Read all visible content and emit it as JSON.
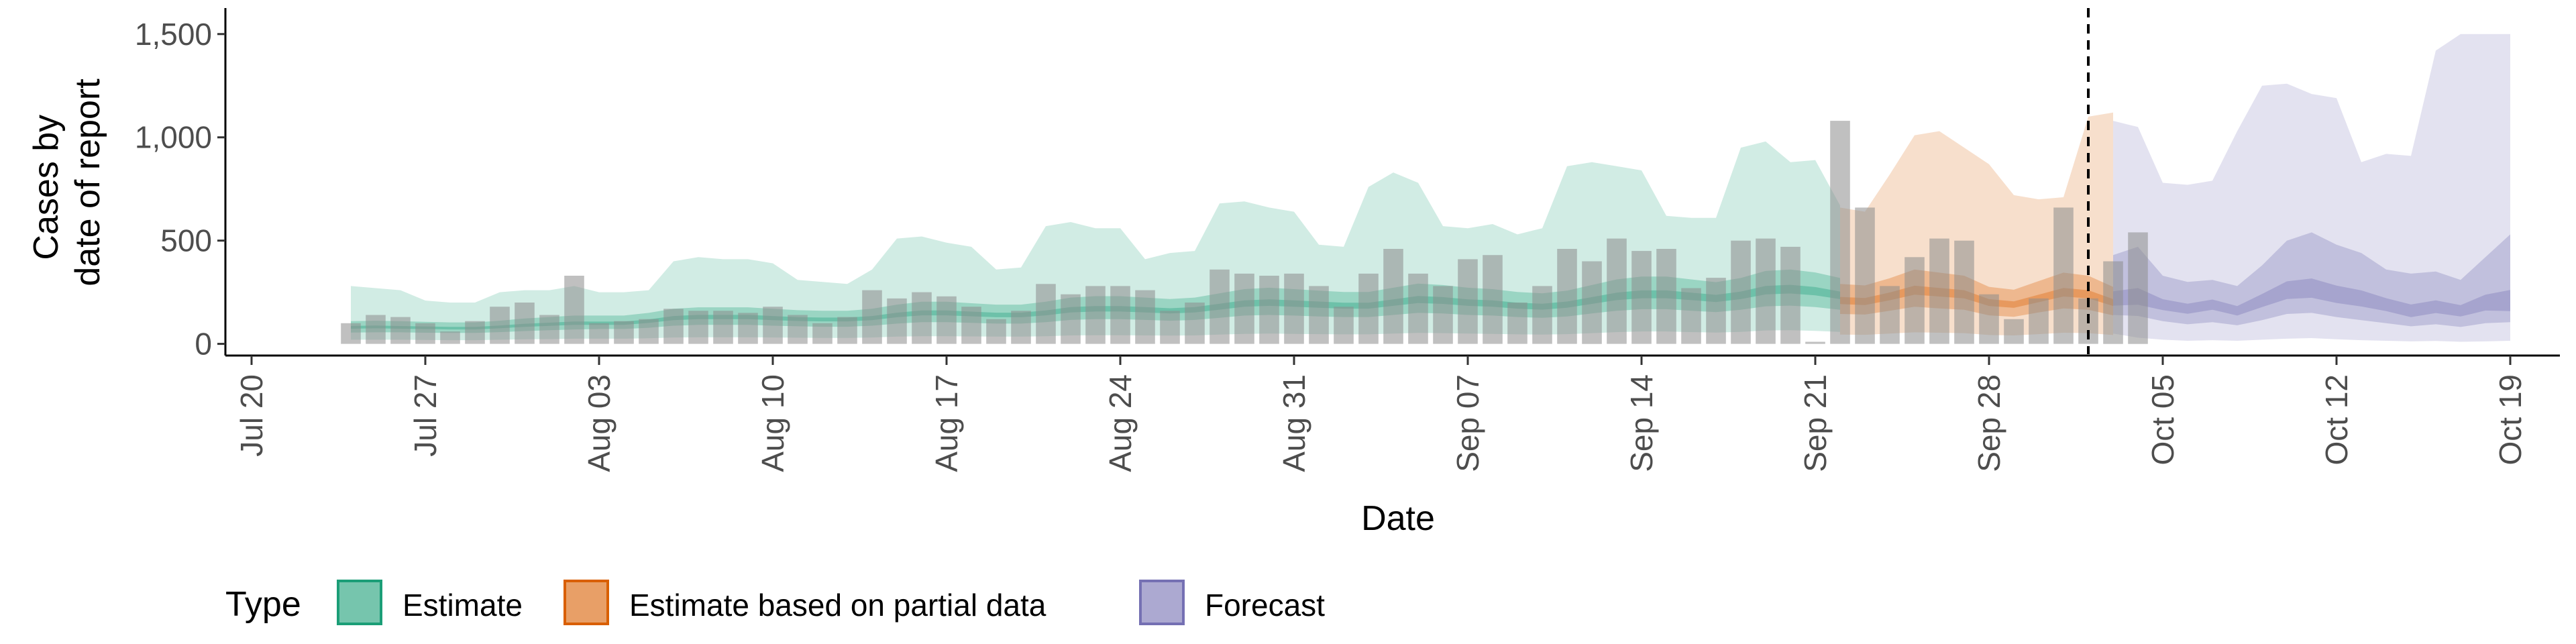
{
  "chart_data": {
    "type": "bar",
    "title": "",
    "xlabel": "Date",
    "ylabel_lines": [
      "Cases by",
      "date of report"
    ],
    "x_range": [
      "2020-07-19",
      "2020-10-21"
    ],
    "ylim": [
      -50,
      1600
    ],
    "y_ticks": [
      {
        "value": 0,
        "label": "0"
      },
      {
        "value": 500,
        "label": "500"
      },
      {
        "value": 1000,
        "label": "1,000"
      },
      {
        "value": 1500,
        "label": "1,500"
      }
    ],
    "x_ticks": [
      {
        "date": "2020-07-20",
        "label": "Jul 20"
      },
      {
        "date": "2020-07-27",
        "label": "Jul 27"
      },
      {
        "date": "2020-08-03",
        "label": "Aug 03"
      },
      {
        "date": "2020-08-10",
        "label": "Aug 10"
      },
      {
        "date": "2020-08-17",
        "label": "Aug 17"
      },
      {
        "date": "2020-08-24",
        "label": "Aug 24"
      },
      {
        "date": "2020-08-31",
        "label": "Aug 31"
      },
      {
        "date": "2020-09-07",
        "label": "Sep 07"
      },
      {
        "date": "2020-09-14",
        "label": "Sep 14"
      },
      {
        "date": "2020-09-21",
        "label": "Sep 21"
      },
      {
        "date": "2020-09-28",
        "label": "Sep 28"
      },
      {
        "date": "2020-10-05",
        "label": "Oct 05"
      },
      {
        "date": "2020-10-12",
        "label": "Oct 12"
      },
      {
        "date": "2020-10-19",
        "label": "Oct 19"
      }
    ],
    "vline_date": "2020-10-02",
    "bars": {
      "color": "#8c8c8c",
      "start_date": "2020-07-24",
      "values": [
        100,
        140,
        130,
        100,
        60,
        110,
        180,
        200,
        140,
        330,
        100,
        110,
        120,
        170,
        160,
        160,
        150,
        180,
        140,
        100,
        130,
        260,
        220,
        250,
        230,
        180,
        120,
        160,
        290,
        240,
        280,
        280,
        260,
        160,
        200,
        360,
        340,
        330,
        340,
        280,
        180,
        340,
        460,
        340,
        280,
        410,
        430,
        200,
        280,
        460,
        400,
        510,
        450,
        460,
        270,
        320,
        500,
        510,
        470,
        10,
        1080,
        660,
        280,
        420,
        510,
        500,
        240,
        120,
        220,
        660,
        220,
        400,
        540
      ]
    },
    "series": [
      {
        "name": "Estimate",
        "color": "#1b9e77",
        "start_date": "2020-07-24",
        "median": [
          80,
          82,
          80,
          78,
          76,
          76,
          82,
          90,
          95,
          100,
          100,
          100,
          110,
          125,
          130,
          130,
          130,
          125,
          120,
          118,
          118,
          125,
          140,
          150,
          150,
          145,
          140,
          140,
          150,
          165,
          170,
          170,
          165,
          160,
          165,
          180,
          195,
          200,
          195,
          190,
          185,
          185,
          200,
          215,
          210,
          200,
          195,
          185,
          180,
          190,
          210,
          230,
          240,
          240,
          230,
          220,
          235,
          260,
          265,
          255,
          235
        ],
        "inner_lo": [
          55,
          56,
          56,
          54,
          53,
          53,
          57,
          62,
          66,
          70,
          72,
          72,
          78,
          88,
          92,
          92,
          92,
          88,
          85,
          83,
          83,
          88,
          98,
          105,
          105,
          102,
          98,
          98,
          105,
          116,
          120,
          120,
          116,
          112,
          116,
          126,
          137,
          140,
          137,
          133,
          130,
          130,
          140,
          150,
          147,
          140,
          137,
          130,
          126,
          133,
          147,
          160,
          168,
          168,
          160,
          154,
          165,
          182,
          185,
          178,
          165
        ],
        "inner_hi": [
          110,
          112,
          110,
          107,
          104,
          104,
          112,
          123,
          130,
          137,
          137,
          137,
          150,
          170,
          177,
          177,
          177,
          170,
          163,
          160,
          160,
          170,
          190,
          204,
          204,
          197,
          190,
          190,
          204,
          224,
          231,
          231,
          224,
          217,
          224,
          245,
          265,
          272,
          265,
          258,
          251,
          251,
          272,
          292,
          285,
          272,
          265,
          251,
          245,
          258,
          285,
          312,
          326,
          326,
          312,
          299,
          319,
          353,
          360,
          346,
          319
        ],
        "outer_lo": [
          20,
          20,
          20,
          19,
          18,
          18,
          20,
          22,
          23,
          25,
          25,
          25,
          27,
          31,
          32,
          32,
          32,
          31,
          30,
          29,
          29,
          31,
          35,
          37,
          37,
          36,
          35,
          35,
          37,
          41,
          42,
          42,
          41,
          40,
          41,
          45,
          48,
          50,
          48,
          47,
          46,
          46,
          50,
          53,
          52,
          50,
          48,
          46,
          45,
          47,
          52,
          57,
          60,
          60,
          57,
          55,
          58,
          65,
          66,
          63,
          58
        ],
        "outer_hi": [
          280,
          270,
          260,
          210,
          200,
          200,
          250,
          260,
          260,
          280,
          250,
          250,
          260,
          400,
          420,
          410,
          410,
          390,
          310,
          300,
          290,
          360,
          510,
          520,
          490,
          470,
          360,
          370,
          570,
          590,
          560,
          560,
          410,
          440,
          450,
          680,
          690,
          660,
          640,
          480,
          470,
          760,
          830,
          780,
          570,
          560,
          580,
          530,
          560,
          860,
          880,
          860,
          840,
          620,
          610,
          610,
          950,
          980,
          880,
          890,
          670
        ]
      },
      {
        "name": "Estimate based on partial data",
        "color": "#d95f02",
        "start_date": "2020-09-22",
        "median": [
          210,
          205,
          230,
          260,
          250,
          240,
          200,
          190,
          220,
          250,
          240,
          200
        ],
        "inner_lo": [
          145,
          142,
          160,
          180,
          172,
          165,
          138,
          131,
          152,
          172,
          165,
          138
        ],
        "inner_hi": [
          290,
          283,
          318,
          360,
          345,
          330,
          276,
          262,
          304,
          345,
          330,
          276
        ],
        "outer_lo": [
          45,
          44,
          50,
          56,
          54,
          52,
          43,
          41,
          47,
          54,
          52,
          43
        ],
        "outer_hi": [
          660,
          640,
          820,
          1010,
          1030,
          950,
          870,
          720,
          700,
          710,
          1100,
          1120
        ]
      },
      {
        "name": "Forecast",
        "color": "#7570b3",
        "start_date": "2020-10-03",
        "median": [
          220,
          230,
          190,
          170,
          190,
          160,
          210,
          260,
          270,
          240,
          220,
          190,
          160,
          180,
          160,
          200,
          210
        ],
        "inner_lo": [
          140,
          135,
          110,
          95,
          105,
          90,
          115,
          145,
          150,
          130,
          115,
          100,
          85,
          95,
          82,
          100,
          105
        ],
        "inner_hi": [
          430,
          470,
          330,
          300,
          310,
          280,
          380,
          500,
          540,
          480,
          440,
          360,
          340,
          350,
          310,
          420,
          530
        ],
        "outer_lo": [
          50,
          30,
          20,
          15,
          18,
          15,
          20,
          25,
          28,
          22,
          18,
          15,
          12,
          14,
          10,
          12,
          15
        ],
        "outer_hi": [
          1080,
          1050,
          780,
          770,
          790,
          1030,
          1250,
          1260,
          1210,
          1190,
          880,
          920,
          910,
          1420,
          1500,
          1500,
          1500
        ]
      }
    ],
    "legend": {
      "position": "bottom-left",
      "title": "Type",
      "entries": [
        {
          "label": "Estimate",
          "color": "#1b9e77"
        },
        {
          "label": "Estimate based on partial data",
          "color": "#d95f02"
        },
        {
          "label": "Forecast",
          "color": "#7570b3"
        }
      ]
    }
  }
}
